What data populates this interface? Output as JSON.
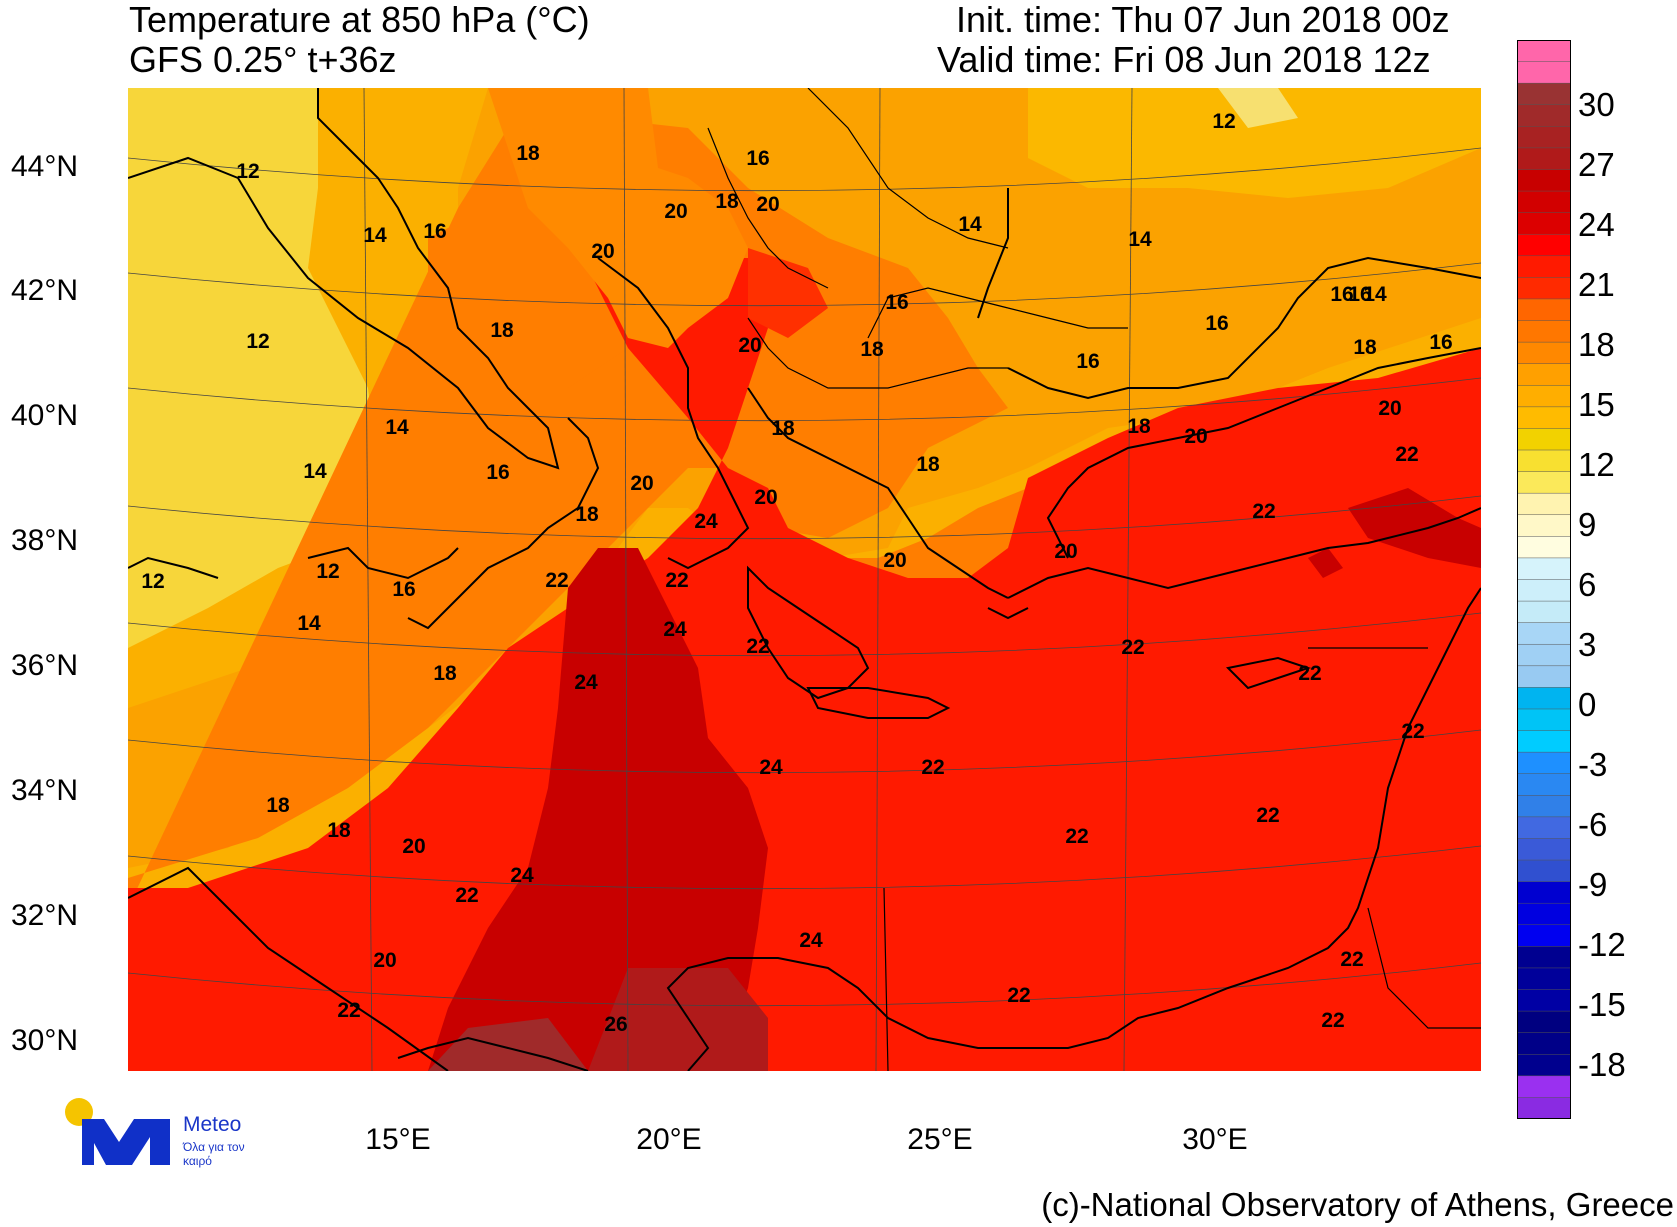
{
  "header": {
    "title": "Temperature at 850 hPa (°C)",
    "model": "GFS 0.25° t+36z",
    "init_time": "Init. time: Thu 07 Jun 2018 00z",
    "valid_time": "Valid time: Fri 08 Jun 2018 12z"
  },
  "axes": {
    "latitudes": [
      "44°N",
      "42°N",
      "40°N",
      "38°N",
      "36°N",
      "34°N",
      "32°N",
      "30°N"
    ],
    "longitudes": [
      "15°E",
      "20°E",
      "25°E",
      "30°E"
    ]
  },
  "colorbar": {
    "labels": [
      "30",
      "27",
      "24",
      "21",
      "18",
      "15",
      "12",
      "9",
      "6",
      "3",
      "0",
      "-3",
      "-6",
      "-9",
      "-12",
      "-15",
      "-18"
    ],
    "colors_top_to_bottom": [
      "#ff66aa",
      "#ff66aa",
      "#993333",
      "#a02a2a",
      "#a82222",
      "#b01a1a",
      "#c80000",
      "#d20000",
      "#dc0000",
      "#ff0000",
      "#ff1a00",
      "#ff2a00",
      "#ff6600",
      "#ff7700",
      "#ff8800",
      "#ffa000",
      "#ffae00",
      "#ffbb00",
      "#f2d200",
      "#f8e030",
      "#fbe95a",
      "#fff3b0",
      "#fff8c8",
      "#fffde0",
      "#d6f3fb",
      "#cdeffa",
      "#c5ebf8",
      "#a8d6f6",
      "#a0d0f4",
      "#98caf2",
      "#00b4f0",
      "#00c4f6",
      "#00ccff",
      "#1e90ff",
      "#2a88f2",
      "#3080e8",
      "#4169e1",
      "#3a5ad8",
      "#3050d0",
      "#0000d0",
      "#0000e0",
      "#0000f0",
      "#000090",
      "#00009a",
      "#0000a4",
      "#000080",
      "#000088",
      "#00008e",
      "#9a30f0",
      "#8a2be2"
    ]
  },
  "contour_labels": [
    "12",
    "12",
    "12",
    "12",
    "12",
    "14",
    "14",
    "14",
    "14",
    "14",
    "14",
    "14",
    "16",
    "16",
    "16",
    "16",
    "16",
    "16",
    "16",
    "16",
    "16",
    "16",
    "18",
    "18",
    "18",
    "18",
    "18",
    "18",
    "18",
    "18",
    "18",
    "18",
    "18",
    "18",
    "20",
    "20",
    "20",
    "20",
    "20",
    "20",
    "20",
    "20",
    "20",
    "20",
    "20",
    "20",
    "22",
    "22",
    "22",
    "22",
    "22",
    "22",
    "22",
    "22",
    "22",
    "22",
    "22",
    "22",
    "22",
    "22",
    "22",
    "22",
    "24",
    "24",
    "24",
    "24",
    "24",
    "24",
    "26"
  ],
  "branding": {
    "logo_name": "Meteo",
    "logo_tagline": "Όλα για τον καιρό",
    "logo_icon": "meteo-m-logo-icon"
  },
  "credit": "(c)-National Observatory of Athens, Greece"
}
